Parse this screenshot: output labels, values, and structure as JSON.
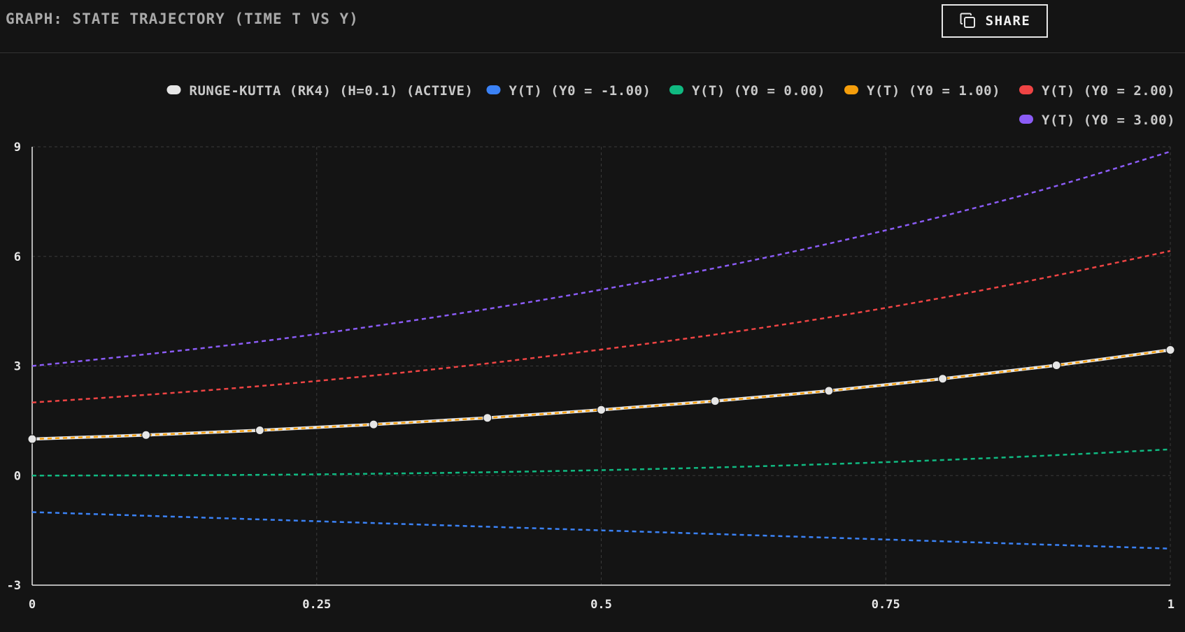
{
  "header": {
    "title": "GRAPH: STATE TRAJECTORY (TIME T VS Y)",
    "share_label": "SHARE",
    "share_icon": "copy-icon"
  },
  "colors": {
    "background": "#141414",
    "grid": "#3a3a3a",
    "axis": "#e8e8e8",
    "rk4": "#e6e6e6"
  },
  "chart_data": {
    "type": "line",
    "xlim": [
      0,
      1
    ],
    "ylim": [
      -3,
      9
    ],
    "x_ticks": [
      0,
      0.25,
      0.5,
      0.75,
      1
    ],
    "x_tick_labels": [
      "0",
      "0.25",
      "0.5",
      "0.75",
      "1"
    ],
    "y_ticks": [
      -3,
      0,
      3,
      6,
      9
    ],
    "y_tick_labels": [
      "-3",
      "0",
      "3",
      "6",
      "9"
    ],
    "grid": true,
    "legend_position": "top-right",
    "x": [
      0,
      0.1,
      0.2,
      0.3,
      0.4,
      0.5,
      0.6,
      0.7,
      0.8,
      0.9,
      1.0
    ],
    "series": [
      {
        "name": "RUNGE-KUTTA (RK4) (H=0.1) (ACTIVE)",
        "color": "#e6e6e6",
        "style": "solid-markers",
        "values": [
          1.0,
          1.11,
          1.24,
          1.4,
          1.58,
          1.8,
          2.04,
          2.32,
          2.65,
          3.02,
          3.44
        ]
      },
      {
        "name": "Y(T) (Y0 = -1.00)",
        "color": "#3b82f6",
        "style": "dashed",
        "values": [
          -1.0,
          -1.1,
          -1.2,
          -1.3,
          -1.4,
          -1.5,
          -1.6,
          -1.7,
          -1.8,
          -1.9,
          -2.0
        ]
      },
      {
        "name": "Y(T) (Y0 = 0.00)",
        "color": "#10b981",
        "style": "dashed",
        "values": [
          0.0,
          0.005,
          0.021,
          0.05,
          0.092,
          0.149,
          0.222,
          0.314,
          0.426,
          0.56,
          0.718
        ]
      },
      {
        "name": "Y(T) (Y0 = 1.00)",
        "color": "#f59e0b",
        "style": "dashed",
        "values": [
          1.0,
          1.11,
          1.24,
          1.4,
          1.58,
          1.8,
          2.04,
          2.32,
          2.65,
          3.02,
          3.44
        ]
      },
      {
        "name": "Y(T) (Y0 = 2.00)",
        "color": "#ef4444",
        "style": "dashed",
        "values": [
          2.0,
          2.21,
          2.45,
          2.74,
          3.07,
          3.45,
          3.86,
          4.33,
          4.87,
          5.48,
          6.15
        ]
      },
      {
        "name": "Y(T) (Y0 = 3.00)",
        "color": "#8b5cf6",
        "style": "dashed",
        "values": [
          3.0,
          3.32,
          3.67,
          4.09,
          4.56,
          5.09,
          5.68,
          6.35,
          7.1,
          7.93,
          8.87
        ]
      }
    ]
  }
}
